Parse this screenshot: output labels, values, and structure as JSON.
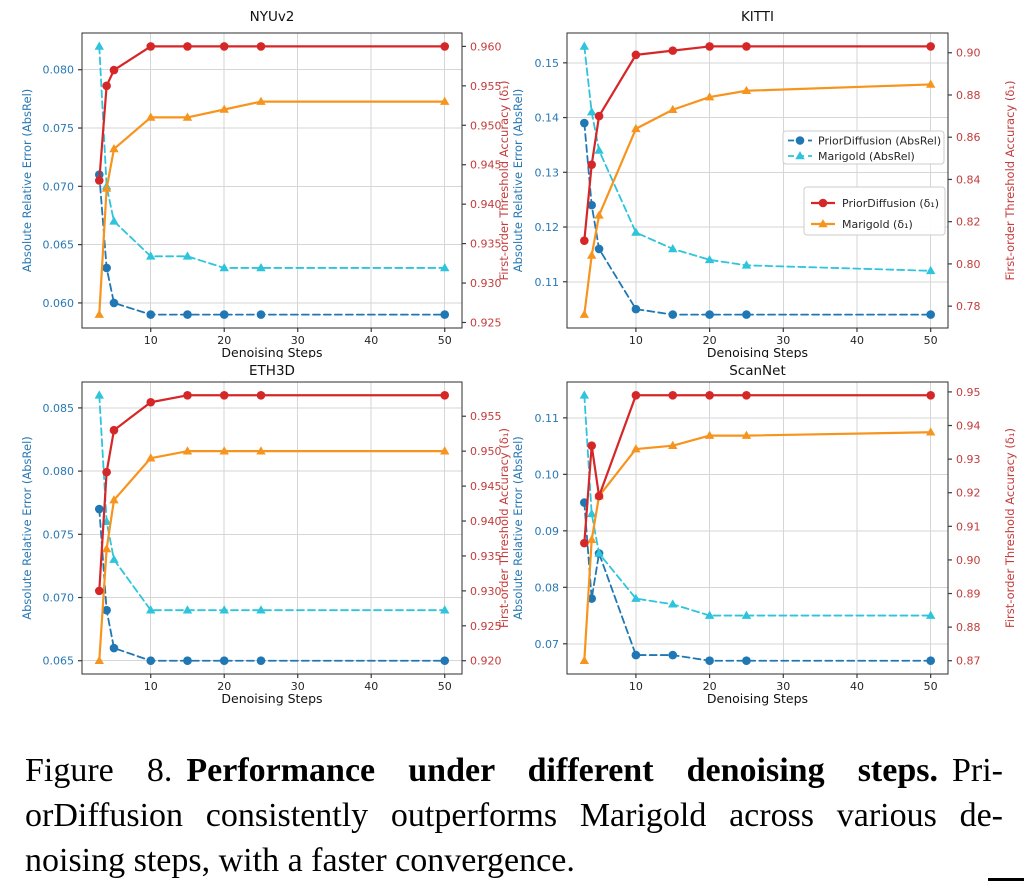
{
  "caption": {
    "line1_normal": "Figure 8.",
    "line1_bold": "Performance under different denoising steps.",
    "line1_tail": "Pri-",
    "line2": "orDiffusion consistently outperforms Marigold across various de-",
    "line3": "noising steps, with a faster convergence."
  },
  "shared": {
    "xlabel": "Denoising Steps",
    "ylabel_left": "Absolute Relative Error (AbsRel)",
    "ylabel_right": "First-order Threshold Accuracy (δ₁)",
    "x_ticks": [
      10,
      20,
      30,
      40,
      50
    ],
    "xlim": [
      0.65,
      52.35
    ],
    "legend": [
      {
        "label": "PriorDiffusion (AbsRel)",
        "color": "#1f77b4",
        "marker": "circle",
        "dash": true
      },
      {
        "label": "Marigold (AbsRel)",
        "color": "#2ec4dc",
        "marker": "triangle",
        "dash": true
      },
      {
        "label": "PriorDiffusion (δ₁)",
        "color": "#d62728",
        "marker": "circle",
        "dash": false
      },
      {
        "label": "Marigold (δ₁)",
        "color": "#f7941e",
        "marker": "triangle",
        "dash": false
      }
    ]
  },
  "style": {
    "grid_color": "#d6d6d6",
    "spine_color": "#2e2e2e",
    "tick_mark_color": "#3a3a3a",
    "left_axis_text_color": "#2878b4",
    "right_axis_text_color": "#c43c3c",
    "title_color": "#111111",
    "xtick_text_color": "#262626",
    "legend_text_color": "#262626",
    "legend_border_color": "#cccccc"
  },
  "chart_data": [
    {
      "type": "line",
      "title": "NYUv2",
      "x": [
        3,
        4,
        5,
        10,
        15,
        20,
        25,
        50
      ],
      "left_ticks": [
        0.06,
        0.065,
        0.07,
        0.075,
        0.08
      ],
      "right_ticks": [
        0.925,
        0.93,
        0.935,
        0.94,
        0.945,
        0.95,
        0.955,
        0.96
      ],
      "left_decimals": 3,
      "right_decimals": 3,
      "show_legend": false,
      "series": [
        {
          "name": "PriorDiffusion (AbsRel)",
          "axis": "left",
          "values": [
            0.071,
            0.063,
            0.06,
            0.059,
            0.059,
            0.059,
            0.059,
            0.059
          ]
        },
        {
          "name": "Marigold (AbsRel)",
          "axis": "left",
          "values": [
            0.082,
            0.07,
            0.067,
            0.064,
            0.064,
            0.063,
            0.063,
            0.063
          ]
        },
        {
          "name": "PriorDiffusion (δ₁)",
          "axis": "right",
          "values": [
            0.943,
            0.955,
            0.957,
            0.96,
            0.96,
            0.96,
            0.96,
            0.96
          ]
        },
        {
          "name": "Marigold (δ₁)",
          "axis": "right",
          "values": [
            0.926,
            0.942,
            0.947,
            0.951,
            0.951,
            0.952,
            0.953,
            0.953
          ]
        }
      ]
    },
    {
      "type": "line",
      "title": "KITTI",
      "x": [
        3,
        4,
        5,
        10,
        15,
        20,
        25,
        50
      ],
      "left_ticks": [
        0.11,
        0.12,
        0.13,
        0.14,
        0.15
      ],
      "right_ticks": [
        0.78,
        0.8,
        0.82,
        0.84,
        0.86,
        0.88,
        0.9
      ],
      "left_decimals": 2,
      "right_decimals": 2,
      "show_legend": true,
      "series": [
        {
          "name": "PriorDiffusion (AbsRel)",
          "axis": "left",
          "values": [
            0.139,
            0.124,
            0.116,
            0.105,
            0.104,
            0.104,
            0.104,
            0.104
          ]
        },
        {
          "name": "Marigold (AbsRel)",
          "axis": "left",
          "values": [
            0.153,
            0.141,
            0.134,
            0.119,
            0.116,
            0.114,
            0.113,
            0.112
          ]
        },
        {
          "name": "PriorDiffusion (δ₁)",
          "axis": "right",
          "values": [
            0.811,
            0.847,
            0.87,
            0.899,
            0.901,
            0.903,
            0.903,
            0.903
          ]
        },
        {
          "name": "Marigold (δ₁)",
          "axis": "right",
          "values": [
            0.776,
            0.804,
            0.823,
            0.864,
            0.873,
            0.879,
            0.882,
            0.885
          ]
        }
      ]
    },
    {
      "type": "line",
      "title": "ETH3D",
      "x": [
        3,
        4,
        5,
        10,
        15,
        20,
        25,
        50
      ],
      "left_ticks": [
        0.065,
        0.07,
        0.075,
        0.08,
        0.085
      ],
      "right_ticks": [
        0.92,
        0.925,
        0.93,
        0.935,
        0.94,
        0.945,
        0.95,
        0.955
      ],
      "left_decimals": 3,
      "right_decimals": 3,
      "show_legend": false,
      "series": [
        {
          "name": "PriorDiffusion (AbsRel)",
          "axis": "left",
          "values": [
            0.077,
            0.069,
            0.066,
            0.065,
            0.065,
            0.065,
            0.065,
            0.065
          ]
        },
        {
          "name": "Marigold (AbsRel)",
          "axis": "left",
          "values": [
            0.086,
            0.076,
            0.073,
            0.069,
            0.069,
            0.069,
            0.069,
            0.069
          ]
        },
        {
          "name": "PriorDiffusion (δ₁)",
          "axis": "right",
          "values": [
            0.93,
            0.947,
            0.953,
            0.957,
            0.958,
            0.958,
            0.958,
            0.958
          ]
        },
        {
          "name": "Marigold (δ₁)",
          "axis": "right",
          "values": [
            0.92,
            0.936,
            0.943,
            0.949,
            0.95,
            0.95,
            0.95,
            0.95
          ]
        }
      ]
    },
    {
      "type": "line",
      "title": "ScanNet",
      "x": [
        3,
        4,
        5,
        10,
        15,
        20,
        25,
        50
      ],
      "left_ticks": [
        0.07,
        0.08,
        0.09,
        0.1,
        0.11
      ],
      "right_ticks": [
        0.87,
        0.88,
        0.89,
        0.9,
        0.91,
        0.92,
        0.93,
        0.94,
        0.95
      ],
      "left_decimals": 2,
      "right_decimals": 2,
      "show_legend": false,
      "series": [
        {
          "name": "PriorDiffusion (AbsRel)",
          "axis": "left",
          "values": [
            0.095,
            0.078,
            0.086,
            0.068,
            0.068,
            0.067,
            0.067,
            0.067
          ]
        },
        {
          "name": "Marigold (AbsRel)",
          "axis": "left",
          "values": [
            0.114,
            0.093,
            0.086,
            0.078,
            0.077,
            0.075,
            0.075,
            0.075
          ]
        },
        {
          "name": "PriorDiffusion (δ₁)",
          "axis": "right",
          "values": [
            0.905,
            0.934,
            0.919,
            0.949,
            0.949,
            0.949,
            0.949,
            0.949
          ]
        },
        {
          "name": "Marigold (δ₁)",
          "axis": "right",
          "values": [
            0.87,
            0.906,
            0.919,
            0.933,
            0.934,
            0.937,
            0.937,
            0.938
          ]
        }
      ]
    }
  ]
}
